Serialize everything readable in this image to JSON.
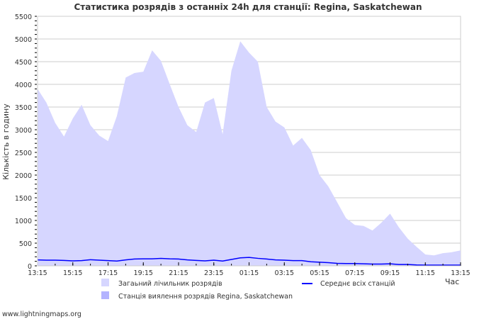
{
  "chart_data": {
    "type": "area",
    "title": "Статистика розрядів з останніх 24h для станції: Regina, Saskatchewan",
    "ylabel": "Кількість в годину",
    "xlabel": "Час",
    "ylim": [
      0,
      5500
    ],
    "yticks": [
      0,
      500,
      1000,
      1500,
      2000,
      2500,
      3000,
      3500,
      4000,
      4500,
      5000,
      5500
    ],
    "xticks": [
      "13:15",
      "15:15",
      "17:15",
      "19:15",
      "21:15",
      "23:15",
      "01:15",
      "03:15",
      "05:15",
      "07:15",
      "09:15",
      "11:15",
      "13:15"
    ],
    "x_hours": 24,
    "x_step_hours": 0.5,
    "grid": true,
    "series": [
      {
        "name": "Загаьний лічильник розрядів",
        "kind": "area",
        "color": "#d6d6ff",
        "values": [
          3900,
          3600,
          3150,
          2850,
          3250,
          3550,
          3100,
          2870,
          2750,
          3300,
          4150,
          4250,
          4280,
          4750,
          4520,
          4000,
          3500,
          3100,
          2950,
          3600,
          3700,
          2900,
          4300,
          4950,
          4700,
          4500,
          3500,
          3180,
          3050,
          2650,
          2820,
          2550,
          2000,
          1750,
          1400,
          1050,
          900,
          880,
          780,
          950,
          1150,
          850,
          600,
          420,
          250,
          230,
          280,
          300,
          340
        ]
      },
      {
        "name": "Станція виялення розрядів Regina, Saskatchewan",
        "kind": "area",
        "color": "#b3b3ff",
        "values": []
      },
      {
        "name": "Середнє всіх станцій",
        "kind": "line",
        "color": "#0000ff",
        "values": [
          130,
          125,
          125,
          120,
          110,
          115,
          135,
          125,
          115,
          105,
          130,
          150,
          155,
          155,
          165,
          155,
          150,
          130,
          120,
          110,
          125,
          105,
          140,
          175,
          185,
          165,
          150,
          130,
          125,
          115,
          115,
          90,
          80,
          70,
          55,
          50,
          50,
          45,
          40,
          40,
          45,
          30,
          30,
          20,
          15,
          15,
          15,
          15,
          15
        ]
      }
    ],
    "legend_position": "bottom"
  },
  "watermark": "www.lightningmaps.org"
}
